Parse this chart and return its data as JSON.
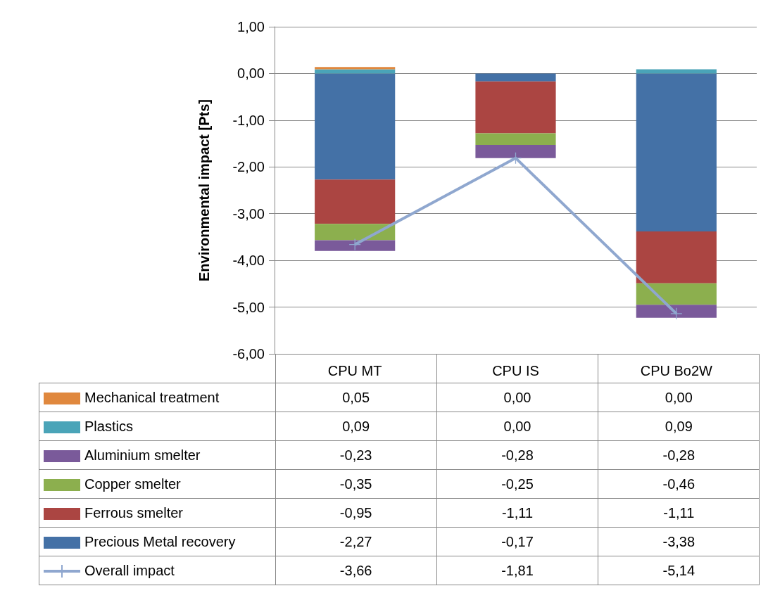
{
  "chart_data": {
    "type": "bar",
    "stacked": true,
    "ylabel": "Environmental impact [Pts]",
    "categories": [
      "CPU MT",
      "CPU IS",
      "CPU Bo2W"
    ],
    "series": [
      {
        "name": "Precious Metal recovery",
        "color": "#4471a6",
        "values": [
          -2.27,
          -0.17,
          -3.38
        ],
        "value_labels": [
          "-2,27",
          "-0,17",
          "-3,38"
        ]
      },
      {
        "name": "Ferrous smelter",
        "color": "#ab4542",
        "values": [
          -0.95,
          -1.11,
          -1.11
        ],
        "value_labels": [
          "-0,95",
          "-1,11",
          "-1,11"
        ]
      },
      {
        "name": "Copper smelter",
        "color": "#8caf4e",
        "values": [
          -0.35,
          -0.25,
          -0.46
        ],
        "value_labels": [
          "-0,35",
          "-0,25",
          "-0,46"
        ]
      },
      {
        "name": "Aluminium smelter",
        "color": "#7a5a9a",
        "values": [
          -0.23,
          -0.28,
          -0.28
        ],
        "value_labels": [
          "-0,23",
          "-0,28",
          "-0,28"
        ]
      },
      {
        "name": "Plastics",
        "color": "#4aa4b8",
        "values": [
          0.09,
          0.0,
          0.09
        ],
        "value_labels": [
          "0,09",
          "0,00",
          "0,09"
        ]
      },
      {
        "name": "Mechanical treatment",
        "color": "#e0883e",
        "values": [
          0.05,
          0.0,
          0.0
        ],
        "value_labels": [
          "0,05",
          "0,00",
          "0,00"
        ]
      },
      {
        "name": "Overall impact",
        "type": "line",
        "color": "#8fa7cf",
        "marker": "cross",
        "values": [
          -3.66,
          -1.81,
          -5.14
        ],
        "value_labels": [
          "-3,66",
          "-1,81",
          "-5,14"
        ]
      }
    ],
    "ylim": [
      -6,
      1
    ],
    "yticks": [
      {
        "value": -6,
        "label": "-6,00"
      },
      {
        "value": -5,
        "label": "-5,00"
      },
      {
        "value": -4,
        "label": "-4,00"
      },
      {
        "value": -3,
        "label": "-3,00"
      },
      {
        "value": -2,
        "label": "-2,00"
      },
      {
        "value": -1,
        "label": "-1,00"
      },
      {
        "value": 0,
        "label": "0,00"
      },
      {
        "value": 1,
        "label": "1,00"
      }
    ],
    "grid": "y",
    "legend": "bottom left"
  }
}
